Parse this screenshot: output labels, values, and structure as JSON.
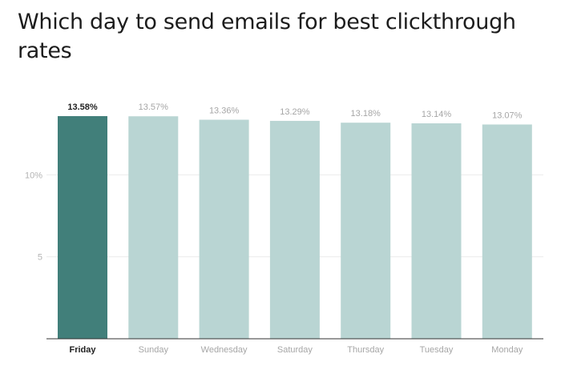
{
  "chart_data": {
    "type": "bar",
    "title": "Which day to send emails for best clickthrough rates",
    "categories": [
      "Friday",
      "Sunday",
      "Wednesday",
      "Saturday",
      "Thursday",
      "Tuesday",
      "Monday"
    ],
    "values": [
      13.58,
      13.57,
      13.36,
      13.29,
      13.18,
      13.14,
      13.07
    ],
    "data_labels": [
      "13.58%",
      "13.57%",
      "13.36%",
      "13.29%",
      "13.18%",
      "13.14%",
      "13.07%"
    ],
    "y_ticks": [
      {
        "value": 5,
        "label": "5"
      },
      {
        "value": 10,
        "label": "10%"
      }
    ],
    "ylim": [
      0,
      13.58
    ],
    "xlabel": "",
    "ylabel": "",
    "grid": true,
    "legend": "none",
    "highlight_index": 0,
    "colors": {
      "highlight_bar": "#417f7a",
      "bar": "#b9d5d3",
      "gridline": "#ececec",
      "axis": "#333333",
      "title": "#1c1c1c"
    }
  }
}
